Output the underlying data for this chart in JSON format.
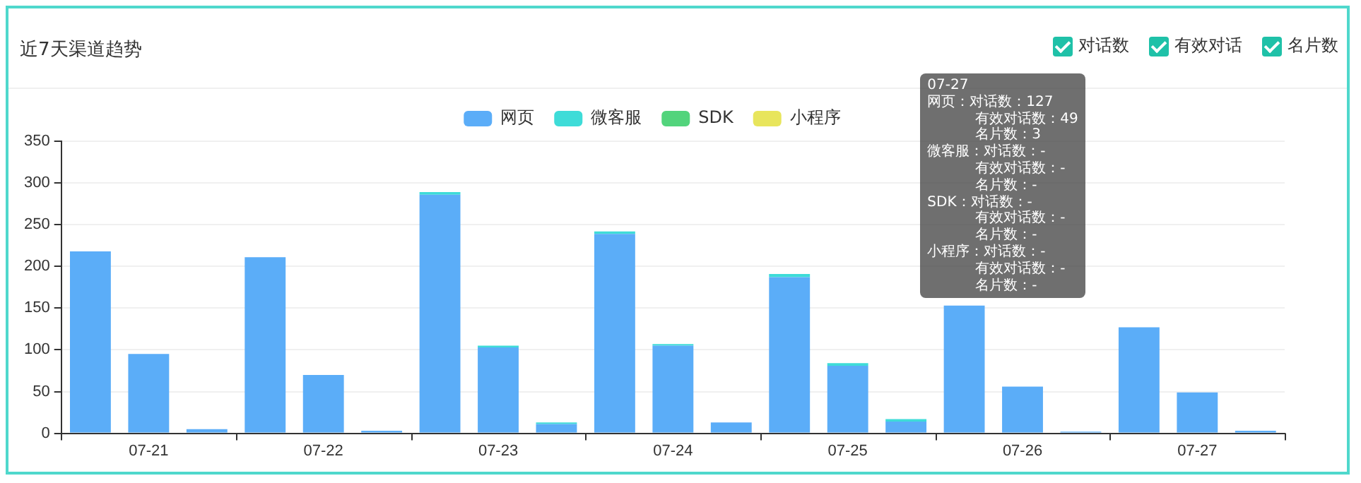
{
  "chart_data": {
    "type": "bar",
    "title": "近7天渠道趋势",
    "categories": [
      null,
      "07-21",
      null,
      null,
      "07-22",
      null,
      null,
      "07-23",
      null,
      null,
      "07-24",
      null,
      null,
      "07-25",
      null,
      null,
      "07-26",
      null,
      null,
      "07-27",
      null
    ],
    "stacked": true,
    "series": [
      {
        "name": "网页",
        "color": "#5badf8",
        "values": [
          218,
          95,
          5,
          211,
          70,
          3,
          286,
          103,
          11,
          239,
          105,
          13,
          187,
          81,
          14,
          153,
          56,
          2,
          127,
          49,
          3
        ]
      },
      {
        "name": "微客服",
        "color": "#3edcd8",
        "values": [
          null,
          null,
          null,
          null,
          null,
          null,
          3,
          2,
          2,
          3,
          2,
          null,
          4,
          3,
          3,
          null,
          null,
          null,
          null,
          null,
          null
        ]
      },
      {
        "name": "SDK",
        "color": "#52d47c",
        "values": [
          null,
          null,
          null,
          null,
          null,
          null,
          null,
          null,
          null,
          null,
          null,
          null,
          null,
          null,
          null,
          null,
          null,
          null,
          null,
          null,
          null
        ]
      },
      {
        "name": "小程序",
        "color": "#e8e55c",
        "values": [
          null,
          null,
          null,
          null,
          null,
          null,
          null,
          null,
          null,
          null,
          null,
          null,
          null,
          null,
          null,
          null,
          null,
          null,
          null,
          null,
          null
        ]
      }
    ],
    "ylim": [
      0,
      350
    ],
    "yticks": [
      0,
      50,
      100,
      150,
      200,
      250,
      300,
      350
    ],
    "grid": "y",
    "legend": "top",
    "annotations": [
      "对话数",
      "有效对话",
      "名片数",
      "07-27",
      "网页：对话数：127",
      "有效对话数：49",
      "名片数：3",
      "微客服：对话数：-",
      "有效对话数：-",
      "名片数：-",
      "SDK：对话数：-",
      "有效对话数：-",
      "名片数：-",
      "小程序：对话数：-",
      "有效对话数：-",
      "名片数：-"
    ]
  }
}
